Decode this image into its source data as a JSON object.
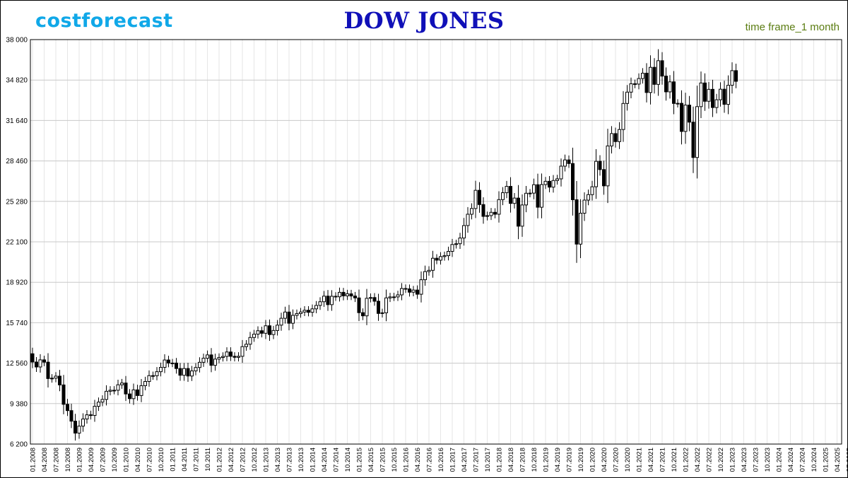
{
  "header": {
    "brand": "costforecast",
    "title": "DOW JONES",
    "timeframe": "time frame_1 month"
  },
  "colors": {
    "brand": "#10a8e8",
    "title": "#1010b8",
    "timeframe": "#5b7d12",
    "bull_fill": "#ffffff",
    "bear_fill": "#000000",
    "grid": "#c8c8c8"
  },
  "chart_data": {
    "type": "candlestick",
    "title": "DOW JONES",
    "xlabel": "",
    "ylabel": "",
    "ylim": [
      6200,
      38000
    ],
    "yticks": [
      6200,
      9380,
      12560,
      15740,
      18920,
      22100,
      25280,
      28460,
      31640,
      34820,
      38000
    ],
    "ytick_labels": [
      "6 200",
      "9 380",
      "12 560",
      "15 740",
      "18 920",
      "22 100",
      "25 280",
      "28 460",
      "31 640",
      "34 820",
      "38 000"
    ],
    "xtick_labels": [
      "01.2008",
      "04.2008",
      "07.2008",
      "10.2008",
      "01.2009",
      "04.2009",
      "07.2009",
      "10.2009",
      "01.2010",
      "04.2010",
      "07.2010",
      "10.2010",
      "01.2011",
      "04.2011",
      "07.2011",
      "10.2011",
      "01.2012",
      "04.2012",
      "07.2012",
      "10.2012",
      "01.2013",
      "04.2013",
      "07.2013",
      "10.2013",
      "01.2014",
      "04.2014",
      "07.2014",
      "10.2014",
      "01.2015",
      "04.2015",
      "07.2015",
      "10.2015",
      "01.2016",
      "04.2016",
      "07.2016",
      "10.2016",
      "01.2017",
      "04.2017",
      "07.2017",
      "10.2017",
      "01.2018",
      "04.2018",
      "07.2018",
      "10.2018",
      "01.2019",
      "04.2019",
      "07.2019",
      "10.2019",
      "01.2020",
      "04.2020",
      "07.2020",
      "10.2020",
      "01.2021",
      "04.2021",
      "07.2021",
      "10.2021",
      "01.2022",
      "04.2022",
      "07.2022",
      "10.2022",
      "01.2023",
      "04.2023",
      "07.2023",
      "10.2023",
      "01.2024",
      "04.2024",
      "07.2024",
      "10.2024",
      "01.2025",
      "04.2025",
      "07.2025",
      "10.2025"
    ],
    "grid": true,
    "close_start": 13300,
    "close": [
      12650,
      12260,
      12820,
      12640,
      11350,
      11380,
      11540,
      10850,
      9325,
      8830,
      8000,
      7060,
      7610,
      8170,
      8500,
      8450,
      9170,
      9500,
      9710,
      10350,
      10430,
      10430,
      10860,
      11000,
      10140,
      9770,
      10460,
      10015,
      10790,
      11120,
      11580,
      11570,
      11890,
      12230,
      12810,
      12570,
      12570,
      12140,
      11610,
      12140,
      11550,
      11950,
      12220,
      12630,
      12950,
      13210,
      12390,
      12880,
      13010,
      13090,
      13440,
      13100,
      13020,
      13100,
      13860,
      14050,
      14580,
      14840,
      15110,
      14910,
      15500,
      14810,
      15130,
      15550,
      16090,
      16580,
      15700,
      16320,
      16460,
      16580,
      16720,
      16560,
      16830,
      17100,
      17390,
      17830,
      17160,
      17820,
      17780,
      18130,
      17850,
      18010,
      17840,
      17690,
      16530,
      16280,
      17660,
      17720,
      17430,
      16470,
      16520,
      17690,
      17770,
      17770,
      17930,
      18430,
      18400,
      18140,
      18310,
      17980,
      19120,
      19760,
      19860,
      20810,
      20660,
      20940,
      21010,
      21350,
      21890,
      21950,
      22400,
      23380,
      24270,
      24720,
      26150,
      25030,
      24100,
      24160,
      24420,
      24270,
      25420,
      25960,
      26460,
      25120,
      25540,
      23330,
      24999,
      25920,
      25930,
      26590,
      24820,
      26600,
      26860,
      26400,
      26920,
      27050,
      28050,
      28540,
      28256,
      25410,
      21920,
      24350,
      25380,
      25810,
      26430,
      28430,
      27780,
      26500,
      29640,
      30610,
      29980,
      30930,
      32980,
      33870,
      34530,
      34500,
      34940,
      35360,
      33840,
      35820,
      34480,
      36340,
      35130,
      33890,
      34680,
      32980,
      32990,
      30780,
      32850,
      31510,
      28730,
      32730,
      34590,
      33150,
      34090,
      32660,
      33270,
      34100,
      32910,
      34410,
      35560,
      34721
    ],
    "note": "monthly candles from 01.2008 to 09.2023; close values estimated from the plot, open of each candle equals the previous close"
  }
}
